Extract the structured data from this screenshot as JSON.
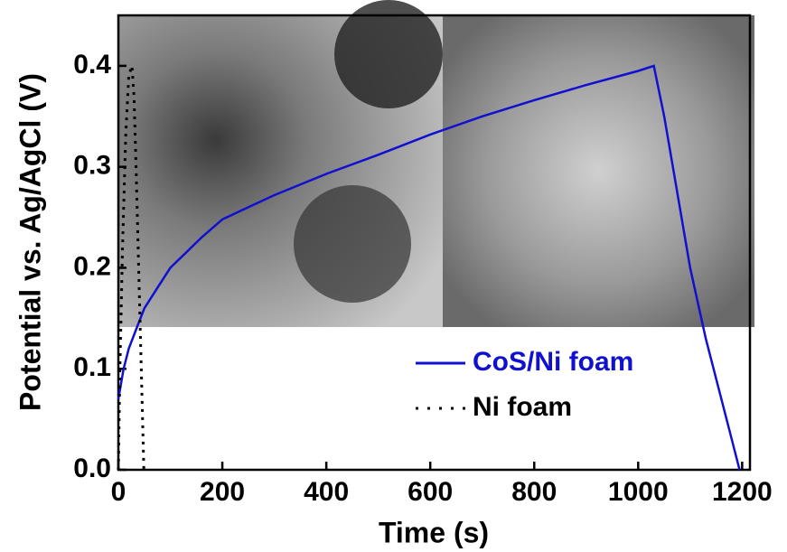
{
  "chart_data": {
    "type": "line",
    "x_label": "Time (s)",
    "y_label": "Potential vs. Ag/AgCl (V)",
    "xlim": [
      0,
      1215
    ],
    "ylim": [
      0,
      0.45
    ],
    "xticks": [
      0,
      200,
      400,
      600,
      800,
      1000,
      1200
    ],
    "yticks": [
      {
        "value": 0,
        "label": "0.0"
      },
      0.1,
      0.2,
      0.3,
      0.4
    ],
    "series": [
      {
        "name": "CoS/Ni foam",
        "color": "#1010d0",
        "style": "solid",
        "x": [
          0,
          10,
          20,
          35,
          50,
          75,
          100,
          130,
          160,
          200,
          250,
          300,
          400,
          500,
          600,
          700,
          800,
          900,
          1000,
          1030,
          1050,
          1070,
          1100,
          1130,
          1160,
          1180,
          1195
        ],
        "values": [
          0.07,
          0.1,
          0.12,
          0.14,
          0.16,
          0.18,
          0.2,
          0.215,
          0.23,
          0.248,
          0.26,
          0.272,
          0.293,
          0.312,
          0.332,
          0.35,
          0.366,
          0.381,
          0.395,
          0.4,
          0.35,
          0.29,
          0.2,
          0.13,
          0.07,
          0.03,
          0.0
        ]
      },
      {
        "name": "Ni foam",
        "color": "#000000",
        "style": "dotted",
        "x": [
          0,
          3,
          8,
          14,
          20,
          26,
          30,
          34,
          38,
          42,
          46,
          49
        ],
        "values": [
          0.0,
          0.1,
          0.22,
          0.33,
          0.39,
          0.4,
          0.37,
          0.3,
          0.22,
          0.14,
          0.06,
          0.0
        ]
      }
    ],
    "legend": "lower-right"
  }
}
